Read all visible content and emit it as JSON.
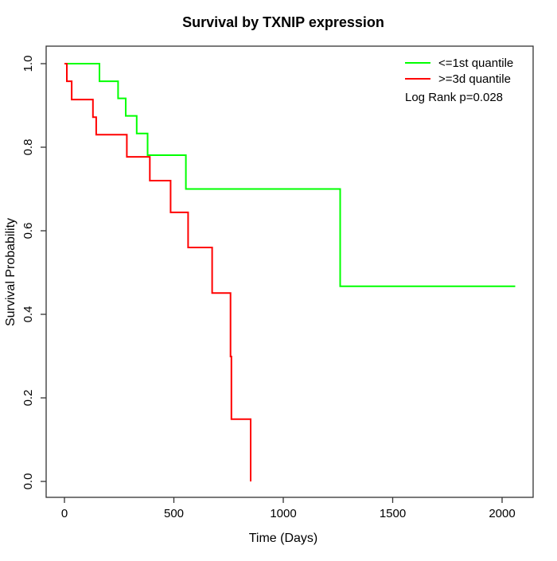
{
  "figure": {
    "title": "Survival by TXNIP expression"
  },
  "chart_data": {
    "type": "line",
    "subtype": "kaplan-meier-step",
    "title": "Survival by TXNIP expression",
    "xlabel": "Time (Days)",
    "ylabel": "Survival Probability",
    "xlim": [
      0,
      2100
    ],
    "ylim": [
      0.0,
      1.0
    ],
    "x_ticks": [
      0,
      500,
      1000,
      1500,
      2000
    ],
    "y_ticks": [
      "0.0",
      "0.2",
      "0.4",
      "0.6",
      "0.8",
      "1.0"
    ],
    "grid": false,
    "legend_position": "top-right",
    "annotation": "Log Rank p=0.028",
    "series": [
      {
        "name": "<=1st quantile",
        "color": "#00ff00",
        "end_time": 2060,
        "steps": [
          [
            0,
            1.0
          ],
          [
            160,
            0.958
          ],
          [
            245,
            0.917
          ],
          [
            280,
            0.875
          ],
          [
            330,
            0.833
          ],
          [
            380,
            0.781
          ],
          [
            555,
            0.7
          ],
          [
            1260,
            0.467
          ]
        ]
      },
      {
        "name": ">=3d quantile",
        "color": "#ff0000",
        "end_time": 851,
        "steps": [
          [
            0,
            1.0
          ],
          [
            11,
            0.958
          ],
          [
            33,
            0.914
          ],
          [
            130,
            0.872
          ],
          [
            145,
            0.83
          ],
          [
            285,
            0.777
          ],
          [
            390,
            0.72
          ],
          [
            485,
            0.644
          ],
          [
            565,
            0.56
          ],
          [
            675,
            0.451
          ],
          [
            759,
            0.299
          ],
          [
            763,
            0.149
          ],
          [
            851,
            0.0
          ]
        ]
      }
    ]
  }
}
